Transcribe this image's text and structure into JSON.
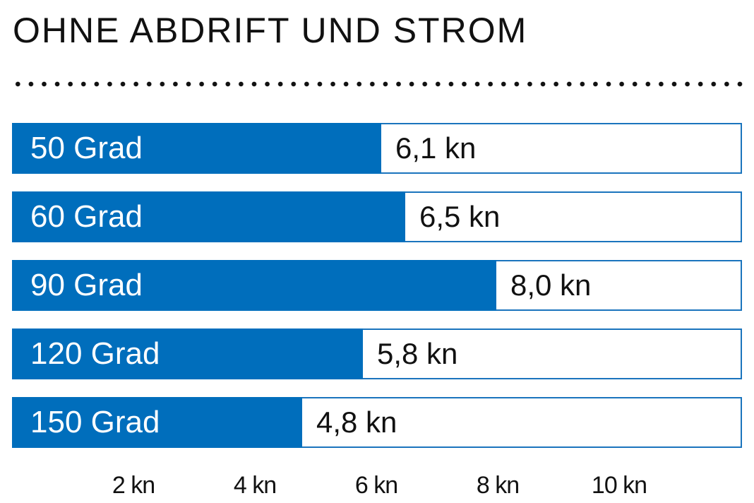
{
  "title": "OHNE ABDRIFT UND STROM",
  "colors": {
    "bar": "#006ebc",
    "border": "#1a74bd",
    "text": "#111111"
  },
  "chart_data": {
    "type": "bar",
    "orientation": "horizontal",
    "title": "OHNE ABDRIFT UND STROM",
    "categories": [
      "50 Grad",
      "60 Grad",
      "90 Grad",
      "120 Grad",
      "150 Grad"
    ],
    "values": [
      6.1,
      6.5,
      8.0,
      5.8,
      4.8
    ],
    "value_labels": [
      "6,1 kn",
      "6,5 kn",
      "8,0 kn",
      "5,8 kn",
      "4,8 kn"
    ],
    "unit": "kn",
    "xlabel": "",
    "ylabel": "",
    "xlim": [
      0,
      12
    ],
    "x_ticks": [
      2,
      4,
      6,
      8,
      10
    ],
    "x_tick_labels": [
      "2 kn",
      "4 kn",
      "6 kn",
      "8 kn",
      "10 kn"
    ],
    "grid": false,
    "legend": null
  }
}
